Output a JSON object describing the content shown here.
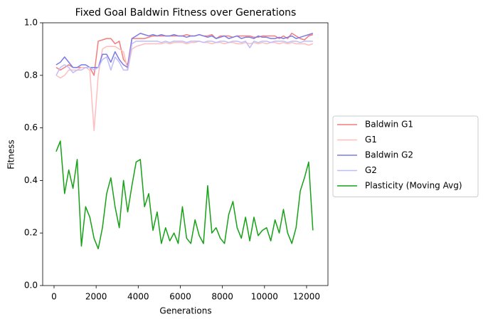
{
  "chart_data": {
    "type": "line",
    "title": "Fixed Goal Baldwin Fitness over Generations",
    "x_label": "Generations",
    "y_label": "Fitness",
    "x": [
      100,
      300,
      500,
      700,
      900,
      1100,
      1300,
      1500,
      1700,
      1900,
      2100,
      2300,
      2500,
      2700,
      2900,
      3100,
      3300,
      3500,
      3700,
      3900,
      4100,
      4300,
      4500,
      4700,
      4900,
      5100,
      5300,
      5500,
      5700,
      5900,
      6100,
      6300,
      6500,
      6700,
      6900,
      7100,
      7300,
      7500,
      7700,
      7900,
      8100,
      8300,
      8500,
      8700,
      8900,
      9100,
      9300,
      9500,
      9700,
      9900,
      10100,
      10300,
      10500,
      10700,
      10900,
      11100,
      11300,
      11500,
      11700,
      11900,
      12100,
      12300
    ],
    "series": [
      {
        "name": "Baldwin G1",
        "color": "#f47c7c",
        "values": [
          0.83,
          0.82,
          0.83,
          0.84,
          0.83,
          0.83,
          0.83,
          0.83,
          0.83,
          0.8,
          0.93,
          0.935,
          0.94,
          0.94,
          0.92,
          0.93,
          0.86,
          0.84,
          0.94,
          0.94,
          0.94,
          0.94,
          0.945,
          0.95,
          0.95,
          0.95,
          0.95,
          0.95,
          0.95,
          0.95,
          0.95,
          0.955,
          0.95,
          0.95,
          0.955,
          0.95,
          0.95,
          0.955,
          0.94,
          0.95,
          0.95,
          0.95,
          0.945,
          0.95,
          0.95,
          0.95,
          0.95,
          0.945,
          0.945,
          0.95,
          0.95,
          0.95,
          0.95,
          0.94,
          0.95,
          0.94,
          0.96,
          0.95,
          0.94,
          0.935,
          0.95,
          0.955
        ]
      },
      {
        "name": "G1",
        "color": "#ffbdbd",
        "values": [
          0.8,
          0.79,
          0.8,
          0.82,
          0.82,
          0.82,
          0.83,
          0.83,
          0.82,
          0.59,
          0.8,
          0.9,
          0.91,
          0.91,
          0.91,
          0.9,
          0.89,
          0.82,
          0.9,
          0.91,
          0.915,
          0.92,
          0.92,
          0.92,
          0.92,
          0.92,
          0.925,
          0.92,
          0.925,
          0.925,
          0.925,
          0.92,
          0.925,
          0.925,
          0.93,
          0.925,
          0.925,
          0.92,
          0.925,
          0.925,
          0.92,
          0.925,
          0.925,
          0.92,
          0.92,
          0.925,
          0.92,
          0.925,
          0.92,
          0.925,
          0.92,
          0.925,
          0.925,
          0.92,
          0.925,
          0.92,
          0.925,
          0.92,
          0.92,
          0.92,
          0.915,
          0.92
        ]
      },
      {
        "name": "Baldwin G2",
        "color": "#7b7be6",
        "values": [
          0.84,
          0.85,
          0.87,
          0.85,
          0.83,
          0.83,
          0.84,
          0.84,
          0.83,
          0.83,
          0.83,
          0.88,
          0.88,
          0.85,
          0.89,
          0.86,
          0.84,
          0.83,
          0.94,
          0.95,
          0.96,
          0.955,
          0.95,
          0.955,
          0.95,
          0.955,
          0.95,
          0.95,
          0.955,
          0.95,
          0.95,
          0.945,
          0.95,
          0.95,
          0.955,
          0.95,
          0.945,
          0.95,
          0.94,
          0.945,
          0.95,
          0.94,
          0.945,
          0.95,
          0.94,
          0.945,
          0.945,
          0.94,
          0.95,
          0.945,
          0.945,
          0.94,
          0.94,
          0.945,
          0.94,
          0.945,
          0.95,
          0.94,
          0.945,
          0.95,
          0.955,
          0.96
        ]
      },
      {
        "name": "G2",
        "color": "#bdbdfc",
        "values": [
          0.8,
          0.83,
          0.84,
          0.83,
          0.81,
          0.82,
          0.82,
          0.83,
          0.83,
          0.82,
          0.83,
          0.86,
          0.87,
          0.82,
          0.87,
          0.85,
          0.82,
          0.82,
          0.92,
          0.93,
          0.93,
          0.93,
          0.93,
          0.93,
          0.93,
          0.925,
          0.93,
          0.925,
          0.93,
          0.93,
          0.93,
          0.925,
          0.93,
          0.93,
          0.93,
          0.925,
          0.93,
          0.93,
          0.925,
          0.93,
          0.93,
          0.925,
          0.93,
          0.93,
          0.925,
          0.93,
          0.905,
          0.93,
          0.925,
          0.93,
          0.93,
          0.925,
          0.93,
          0.93,
          0.93,
          0.925,
          0.93,
          0.93,
          0.925,
          0.93,
          0.93,
          0.93
        ]
      },
      {
        "name": "Plasticity (Moving Avg)",
        "color": "#16a116",
        "values": [
          0.51,
          0.55,
          0.35,
          0.44,
          0.37,
          0.48,
          0.15,
          0.3,
          0.26,
          0.18,
          0.14,
          0.22,
          0.35,
          0.41,
          0.3,
          0.22,
          0.4,
          0.28,
          0.38,
          0.47,
          0.48,
          0.3,
          0.35,
          0.21,
          0.28,
          0.16,
          0.22,
          0.17,
          0.2,
          0.16,
          0.3,
          0.18,
          0.16,
          0.25,
          0.19,
          0.16,
          0.38,
          0.2,
          0.22,
          0.18,
          0.16,
          0.27,
          0.32,
          0.22,
          0.18,
          0.26,
          0.17,
          0.26,
          0.19,
          0.21,
          0.22,
          0.17,
          0.25,
          0.2,
          0.29,
          0.2,
          0.16,
          0.22,
          0.36,
          0.41,
          0.47,
          0.21
        ]
      }
    ],
    "xlim": [
      -540,
      13015
    ],
    "ylim": [
      0,
      1
    ],
    "xticks": [
      0,
      2000,
      4000,
      6000,
      8000,
      10000,
      12000
    ],
    "yticks": [
      {
        "value": 0,
        "label": "0.0"
      },
      {
        "value": 0.2,
        "label": "0.2"
      },
      {
        "value": 0.4,
        "label": "0.4"
      },
      {
        "value": 0.6,
        "label": "0.6"
      },
      {
        "value": 0.8,
        "label": "0.8"
      },
      {
        "value": 1,
        "label": "1.0"
      }
    ],
    "legend": "right"
  }
}
